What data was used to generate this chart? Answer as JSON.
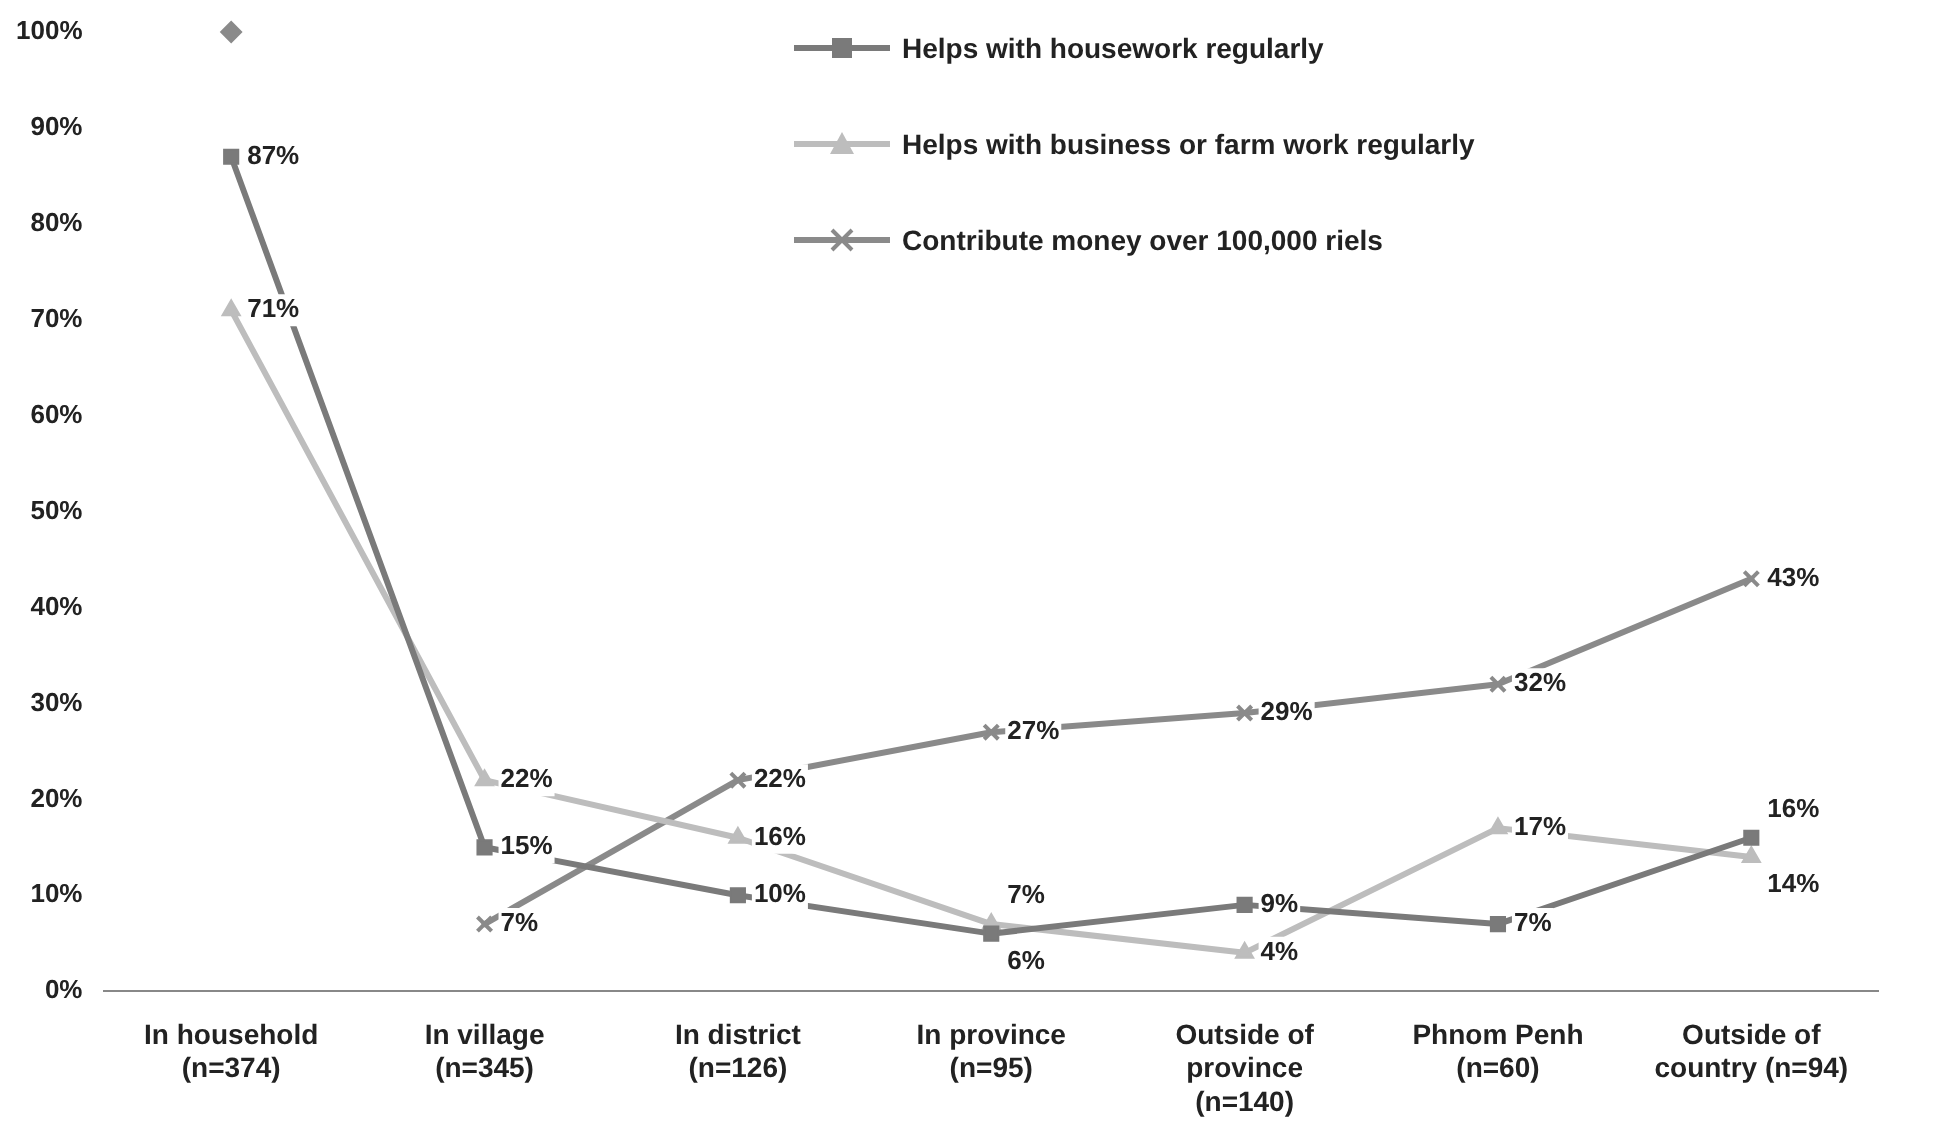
{
  "chart_data": {
    "type": "line",
    "categories": [
      "In household\n(n=374)",
      "In village\n(n=345)",
      "In district\n(n=126)",
      "In province\n(n=95)",
      "Outside of\nprovince\n(n=140)",
      "Phnom Penh\n(n=60)",
      "Outside of\ncountry (n=94)"
    ],
    "series": [
      {
        "name": "Helps with housework regularly",
        "color": "#7a7a7a",
        "marker": "square",
        "values": [
          87,
          15,
          10,
          6,
          9,
          7,
          16
        ],
        "value_labels": [
          "87%",
          "15%",
          "10%",
          "6%",
          "9%",
          "7%",
          "16%"
        ]
      },
      {
        "name": "Helps with business or farm work regularly",
        "color": "#bdbdbd",
        "marker": "triangle",
        "values": [
          71,
          22,
          16,
          7,
          4,
          17,
          14
        ],
        "value_labels": [
          "71%",
          "22%",
          "16%",
          "7%",
          "4%",
          "17%",
          "14%"
        ]
      },
      {
        "name": "Contribute money over 100,000 riels",
        "color": "#8a8a8a",
        "marker": "cross",
        "values": [
          null,
          7,
          22,
          27,
          29,
          32,
          43
        ],
        "value_labels": [
          null,
          "7%",
          "22%",
          "27%",
          "29%",
          "32%",
          "43%"
        ]
      },
      {
        "type": "scatter",
        "color": "#8a8a8a",
        "marker": "diamond",
        "x": [
          "In household\n(n=374)"
        ],
        "values": [
          100
        ]
      }
    ],
    "ylim": [
      0,
      100
    ],
    "yticks": [
      {
        "value": 0,
        "label": "0%"
      },
      {
        "value": 10,
        "label": "10%"
      },
      {
        "value": 20,
        "label": "20%"
      },
      {
        "value": 30,
        "label": "30%"
      },
      {
        "value": 40,
        "label": "40%"
      },
      {
        "value": 50,
        "label": "50%"
      },
      {
        "value": 60,
        "label": "60%"
      },
      {
        "value": 70,
        "label": "70%"
      },
      {
        "value": 80,
        "label": "80%"
      },
      {
        "value": 90,
        "label": "90%"
      },
      {
        "value": 100,
        "label": "100%"
      }
    ],
    "grid": false,
    "legend": "top right"
  }
}
